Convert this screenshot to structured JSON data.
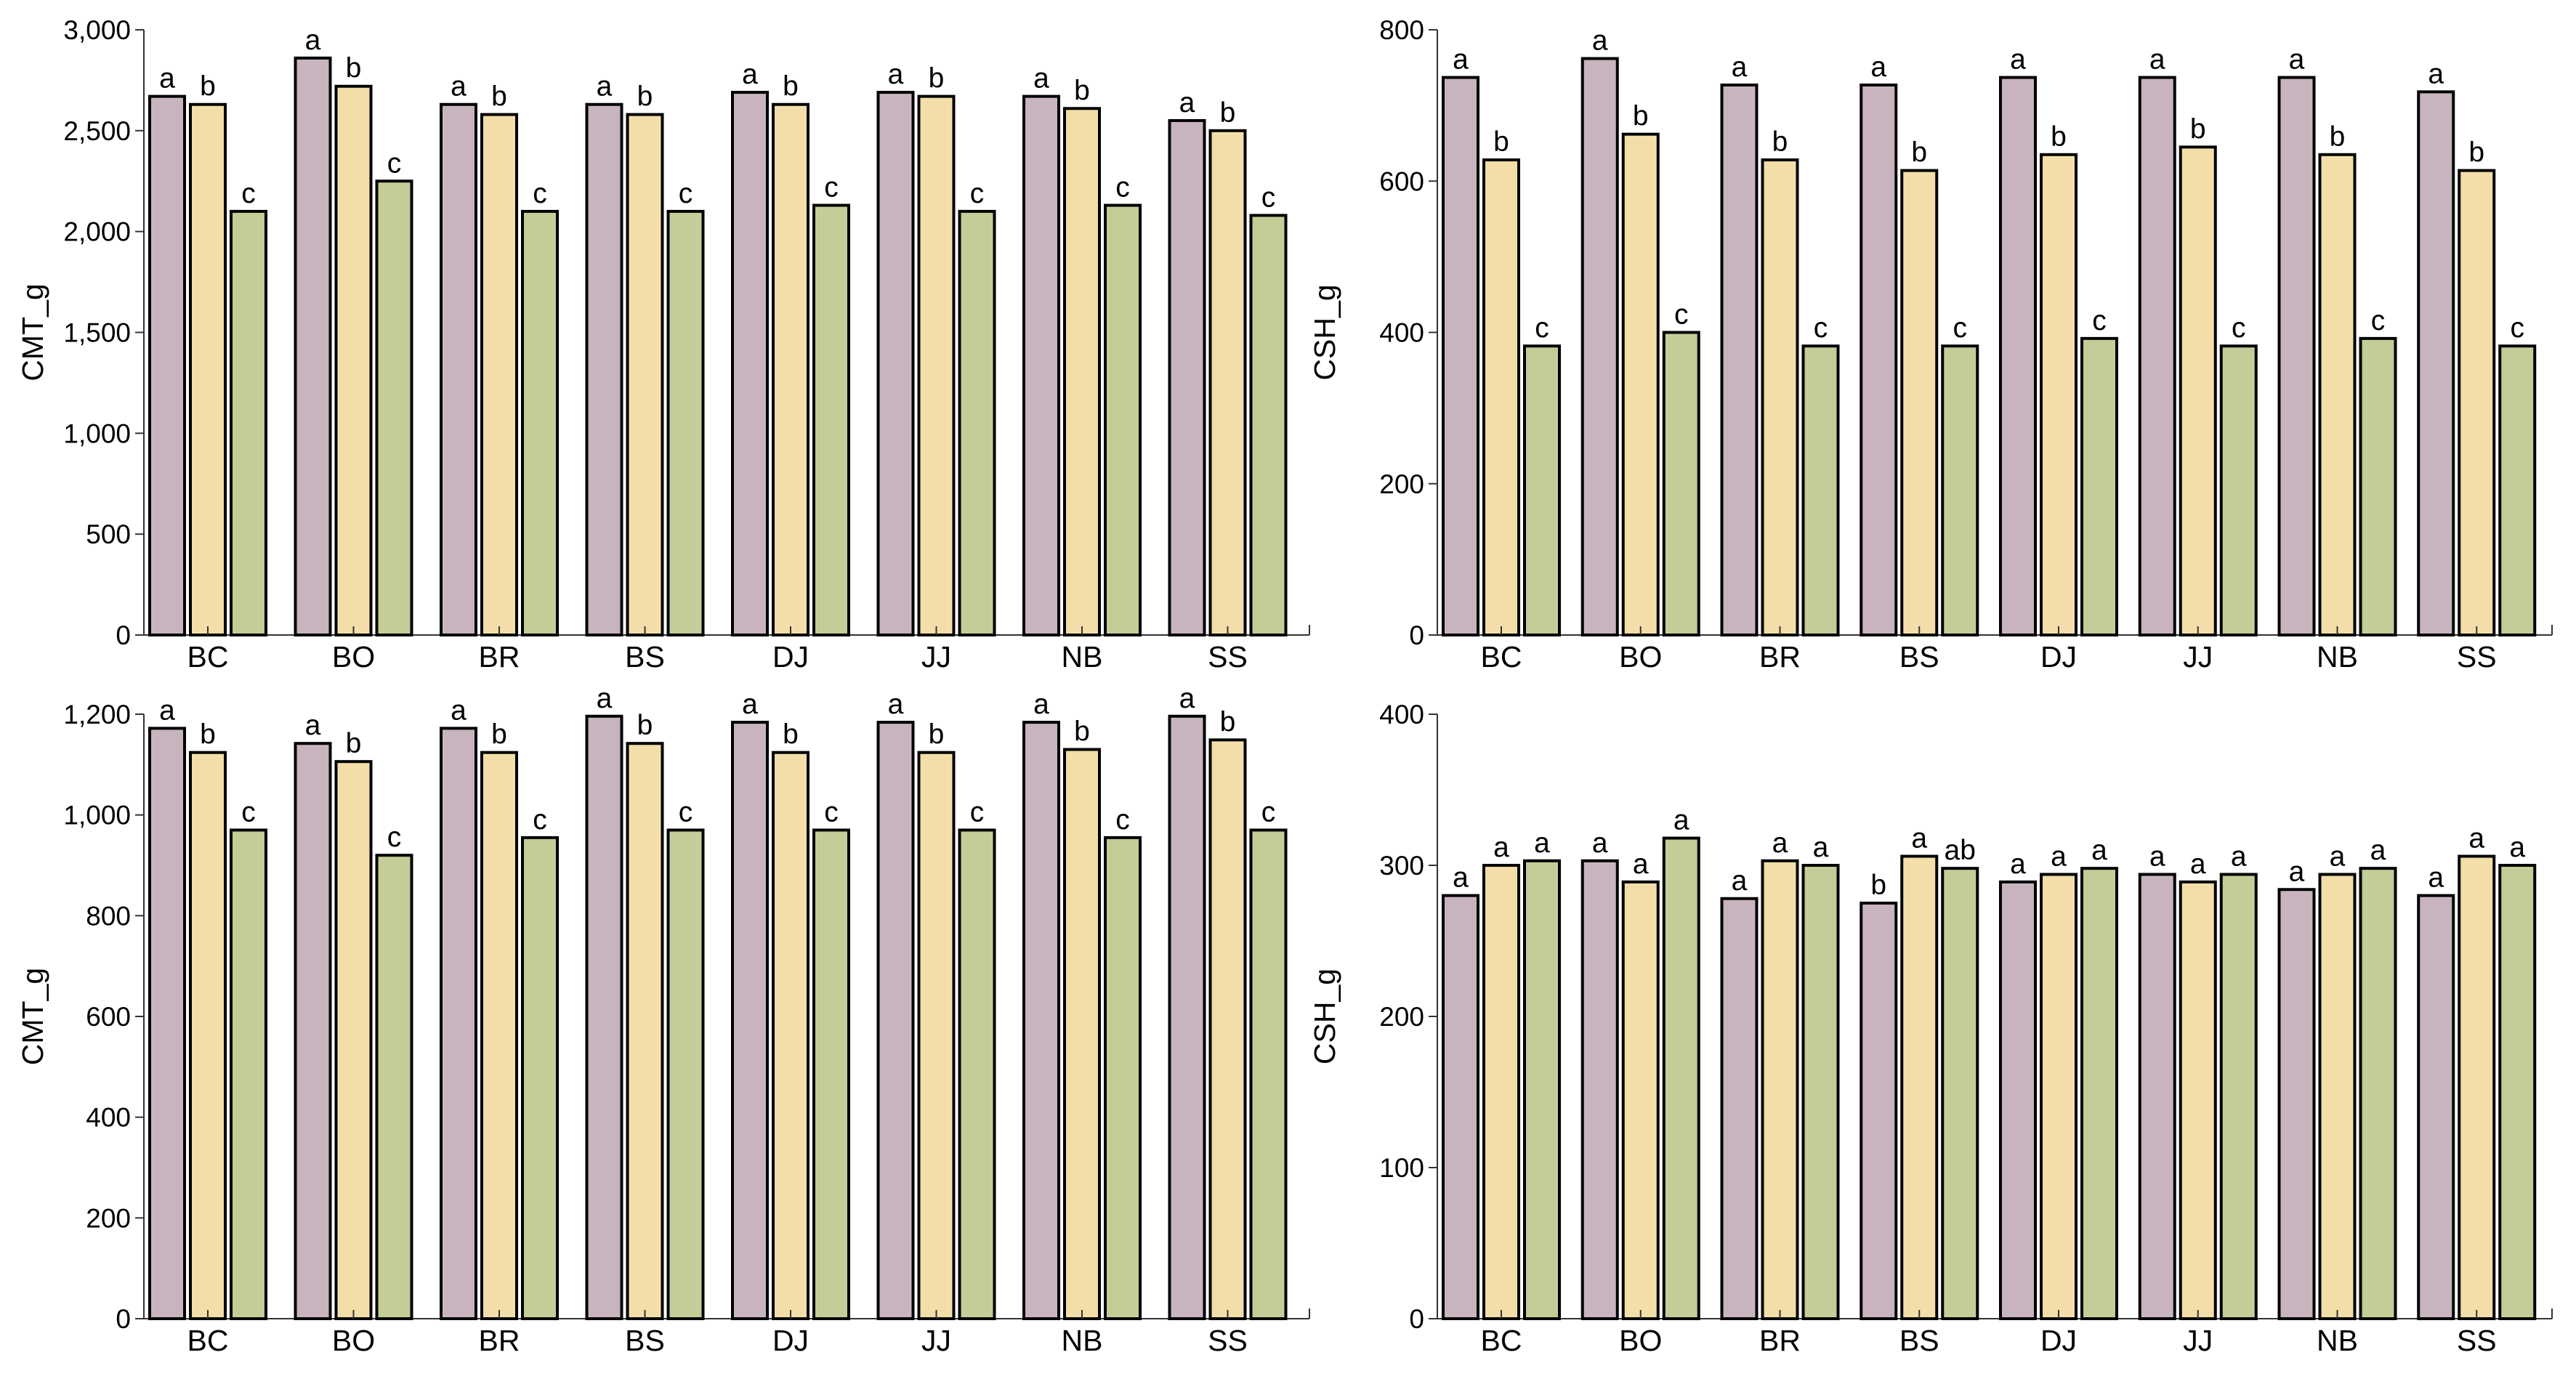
{
  "colors": {
    "series_1": "#c8b4bf",
    "series_2": "#f3deaa",
    "series_3": "#c2cd98"
  },
  "chart_data": [
    {
      "type": "bar",
      "ylabel": "CMT_g",
      "ylim": [
        0,
        3000
      ],
      "yticks": [
        0,
        500,
        1000,
        1500,
        2000,
        2500,
        3000
      ],
      "ytick_labels": [
        "0",
        "500",
        "1,000",
        "1,500",
        "2,000",
        "2,500",
        "3,000"
      ],
      "categories": [
        "BC",
        "BO",
        "BR",
        "BS",
        "DJ",
        "JJ",
        "NB",
        "SS"
      ],
      "series": [
        {
          "values": [
            2670,
            2860,
            2630,
            2630,
            2690,
            2690,
            2670,
            2550
          ],
          "labels": [
            "a",
            "a",
            "a",
            "a",
            "a",
            "a",
            "a",
            "a"
          ]
        },
        {
          "values": [
            2630,
            2720,
            2580,
            2580,
            2630,
            2670,
            2610,
            2500
          ],
          "labels": [
            "b",
            "b",
            "b",
            "b",
            "b",
            "b",
            "b",
            "b"
          ]
        },
        {
          "values": [
            2100,
            2250,
            2100,
            2100,
            2130,
            2100,
            2130,
            2080
          ],
          "labels": [
            "c",
            "c",
            "c",
            "c",
            "c",
            "c",
            "c",
            "c"
          ]
        }
      ]
    },
    {
      "type": "bar",
      "ylabel": "CSH_g",
      "ylim": [
        0,
        800
      ],
      "yticks": [
        0,
        200,
        400,
        600,
        800
      ],
      "ytick_labels": [
        "0",
        "200",
        "400",
        "600",
        "800"
      ],
      "categories": [
        "BC",
        "BO",
        "BR",
        "BS",
        "DJ",
        "JJ",
        "NB",
        "SS"
      ],
      "series": [
        {
          "values": [
            737,
            762,
            727,
            727,
            737,
            737,
            737,
            718
          ],
          "labels": [
            "a",
            "a",
            "a",
            "a",
            "a",
            "a",
            "a",
            "a"
          ]
        },
        {
          "values": [
            628,
            662,
            628,
            614,
            635,
            645,
            635,
            614
          ],
          "labels": [
            "b",
            "b",
            "b",
            "b",
            "b",
            "b",
            "b",
            "b"
          ]
        },
        {
          "values": [
            382,
            400,
            382,
            382,
            392,
            382,
            392,
            382
          ],
          "labels": [
            "c",
            "c",
            "c",
            "c",
            "c",
            "c",
            "c",
            "c"
          ]
        }
      ]
    },
    {
      "type": "bar",
      "ylabel": "CMT_g",
      "ylim": [
        0,
        1200
      ],
      "yticks": [
        0,
        200,
        400,
        600,
        800,
        1000,
        1200
      ],
      "ytick_labels": [
        "0",
        "200",
        "400",
        "600",
        "800",
        "1,000",
        "1,200"
      ],
      "categories": [
        "BC",
        "BO",
        "BR",
        "BS",
        "DJ",
        "JJ",
        "NB",
        "SS"
      ],
      "series": [
        {
          "values": [
            1172,
            1142,
            1172,
            1196,
            1184,
            1184,
            1184,
            1196
          ],
          "labels": [
            "a",
            "a",
            "a",
            "a",
            "a",
            "a",
            "a",
            "a"
          ]
        },
        {
          "values": [
            1124,
            1106,
            1124,
            1142,
            1124,
            1124,
            1130,
            1149
          ],
          "labels": [
            "b",
            "b",
            "b",
            "b",
            "b",
            "b",
            "b",
            "b"
          ]
        },
        {
          "values": [
            970,
            920,
            955,
            970,
            970,
            970,
            955,
            970
          ],
          "labels": [
            "c",
            "c",
            "c",
            "c",
            "c",
            "c",
            "c",
            "c"
          ]
        }
      ]
    },
    {
      "type": "bar",
      "ylabel": "CSH_g",
      "ylim": [
        0,
        400
      ],
      "yticks": [
        0,
        100,
        200,
        300,
        400
      ],
      "ytick_labels": [
        "0",
        "100",
        "200",
        "300",
        "400"
      ],
      "categories": [
        "BC",
        "BO",
        "BR",
        "BS",
        "DJ",
        "JJ",
        "NB",
        "SS"
      ],
      "series": [
        {
          "values": [
            280,
            303,
            278,
            275,
            289,
            294,
            284,
            280
          ],
          "labels": [
            "a",
            "a",
            "a",
            "b",
            "a",
            "a",
            "a",
            "a"
          ]
        },
        {
          "values": [
            300,
            289,
            303,
            306,
            294,
            289,
            294,
            306
          ],
          "labels": [
            "a",
            "a",
            "a",
            "a",
            "a",
            "a",
            "a",
            "a"
          ]
        },
        {
          "values": [
            303,
            318,
            300,
            298,
            298,
            294,
            298,
            300
          ],
          "labels": [
            "a",
            "a",
            "a",
            "ab",
            "a",
            "a",
            "a",
            "a"
          ]
        }
      ]
    }
  ]
}
